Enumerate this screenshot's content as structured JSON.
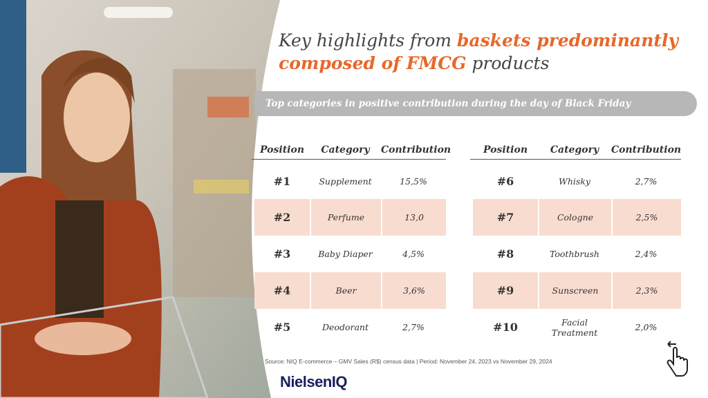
{
  "title": {
    "line1_plain": "Key highlights from",
    "line1_highlight": "baskets predominantly",
    "line2_highlight": "composed of FMCG",
    "line2_plain": "products"
  },
  "banner": "Top categories in positive contribution during the day of Black Friday",
  "tables": [
    {
      "headers": [
        "Position",
        "Category",
        "Contribution"
      ],
      "rows": [
        [
          "#1",
          "Supplement",
          "15,5%"
        ],
        [
          "#2",
          "Perfume",
          "13,0"
        ],
        [
          "#3",
          "Baby Diaper",
          "4,5%"
        ],
        [
          "#4",
          "Beer",
          "3,6%"
        ],
        [
          "#5",
          "Deodorant",
          "2,7%"
        ]
      ]
    },
    {
      "headers": [
        "Position",
        "Category",
        "Contribution"
      ],
      "rows": [
        [
          "#6",
          "Whisky",
          "2,7%"
        ],
        [
          "#7",
          "Cologne",
          "2,5%"
        ],
        [
          "#8",
          "Toothbrush",
          "2,4%"
        ],
        [
          "#9",
          "Sunscreen",
          "2,3%"
        ],
        [
          "#10",
          "Facial Treatment",
          "2,0%"
        ]
      ]
    }
  ],
  "source": "Source: NIQ E-commerce – GMV Sales (R$) census data | Period: November 24, 2023 vs November 29, 2024",
  "logo": "NielsenIQ"
}
